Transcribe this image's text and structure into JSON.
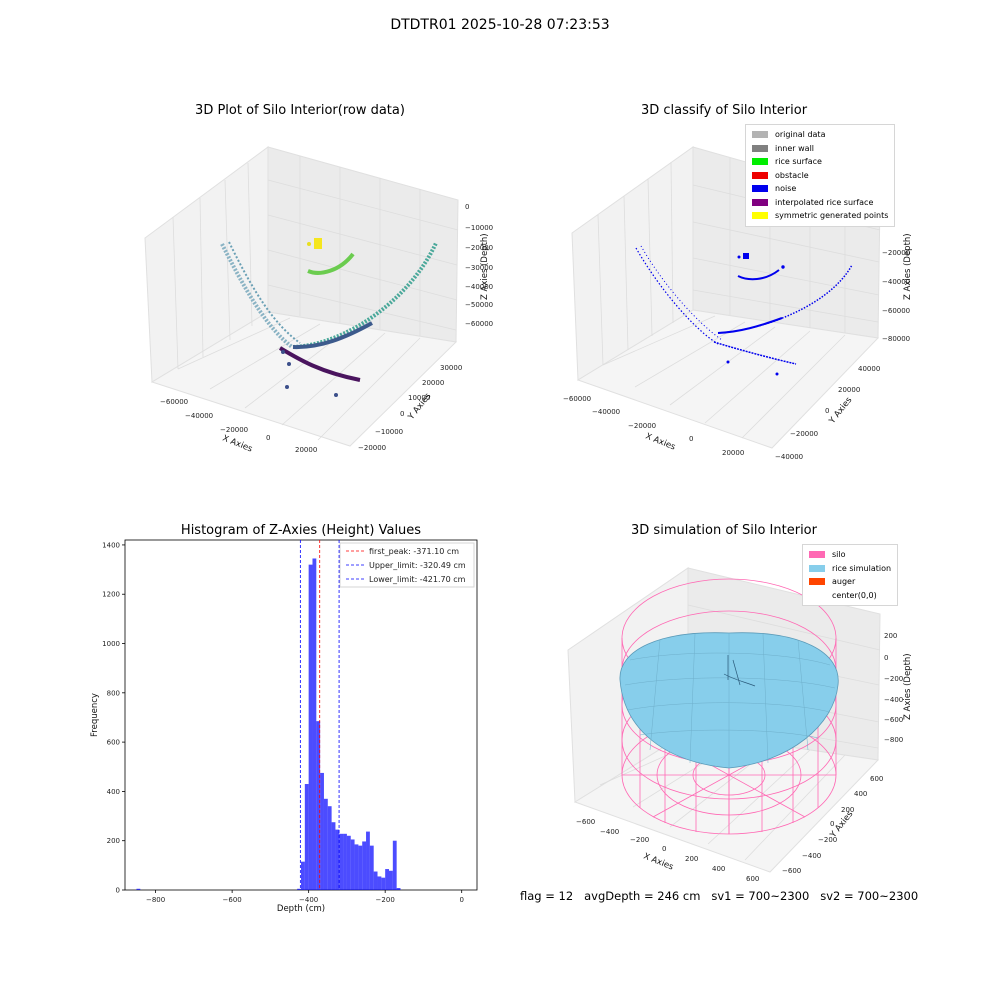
{
  "suptitle": "DTDTR01 2025-10-28 07:23:53",
  "footer": "flag = 12   avgDepth = 246 cm   sv1 = 700~2300   sv2 = 700~2300",
  "plots": {
    "p1": {
      "title": "3D Plot of Silo Interior(row data)",
      "xlabel": "X Axies",
      "ylabel": "Y Axies",
      "zlabel": "Z Axies (Depth)",
      "xticks": [
        "−60000",
        "−40000",
        "−20000",
        "0",
        "20000"
      ],
      "yticks": [
        "−20000",
        "−10000",
        "0",
        "10000",
        "20000",
        "30000"
      ],
      "zticks": [
        "0",
        "−10000",
        "−20000",
        "−30000",
        "−40000",
        "−50000",
        "−60000"
      ]
    },
    "p2": {
      "title": "3D classify of Silo Interior",
      "xlabel": "X Axies",
      "ylabel": "Y Axies",
      "zlabel": "Z Axies (Depth)",
      "xticks": [
        "−60000",
        "−40000",
        "−20000",
        "0",
        "20000"
      ],
      "yticks": [
        "−40000",
        "−20000",
        "0",
        "20000",
        "40000"
      ],
      "zticks": [
        "0",
        "−20000",
        "−40000",
        "−60000",
        "−80000"
      ],
      "legend": [
        {
          "label": "original data",
          "color": "#b3b3b3"
        },
        {
          "label": "inner wall",
          "color": "#808080"
        },
        {
          "label": "rice surface",
          "color": "#00ee00"
        },
        {
          "label": "obstacle",
          "color": "#ee0000"
        },
        {
          "label": "noise",
          "color": "#0000ee"
        },
        {
          "label": "interpolated rice surface",
          "color": "#800080"
        },
        {
          "label": "symmetric generated points",
          "color": "#ffff00"
        }
      ]
    },
    "p4": {
      "title": "3D simulation of Silo Interior",
      "xlabel": "X Axies",
      "ylabel": "Y Axies",
      "zlabel": "Z Axies (Depth)",
      "xticks": [
        "−600",
        "−400",
        "−200",
        "0",
        "200",
        "400",
        "600"
      ],
      "yticks": [
        "−600",
        "−400",
        "−200",
        "0",
        "200",
        "400",
        "600"
      ],
      "zticks": [
        "200",
        "0",
        "−200",
        "−400",
        "−600",
        "−800"
      ],
      "legend": [
        {
          "label": "silo",
          "color": "#ff69b4"
        },
        {
          "label": "rice simulation",
          "color": "#87ceeb"
        },
        {
          "label": "auger",
          "color": "#ff4500"
        },
        {
          "label": "center(0,0)",
          "color": "#ffffff"
        }
      ]
    }
  },
  "chart_data": [
    {
      "type": "scatter",
      "title": "3D Plot of Silo Interior(row data)",
      "xlabel": "X Axies",
      "ylabel": "Y Axies",
      "zlabel": "Z Axies (Depth)",
      "xlim": [
        -65000,
        30000
      ],
      "ylim": [
        -25000,
        35000
      ],
      "zlim": [
        -65000,
        2000
      ]
    },
    {
      "type": "scatter",
      "title": "3D classify of Silo Interior",
      "xlabel": "X Axies",
      "ylabel": "Y Axies",
      "zlabel": "Z Axies (Depth)",
      "xlim": [
        -65000,
        30000
      ],
      "ylim": [
        -45000,
        45000
      ],
      "zlim": [
        -85000,
        2000
      ]
    },
    {
      "type": "bar",
      "title": "Histogram of Z-Axies (Height) Values",
      "xlabel": "Depth (cm)",
      "ylabel": "Frequency",
      "xlim": [
        -880,
        40
      ],
      "ylim": [
        0,
        1420
      ],
      "xticks": [
        -800,
        -600,
        -400,
        -200,
        0
      ],
      "yticks": [
        0,
        200,
        400,
        600,
        800,
        1000,
        1200,
        1400
      ],
      "bin_width": 10,
      "bins": [
        {
          "x": -850,
          "y": 5
        },
        {
          "x": -430,
          "y": 5
        },
        {
          "x": -420,
          "y": 115
        },
        {
          "x": -410,
          "y": 430
        },
        {
          "x": -400,
          "y": 1320
        },
        {
          "x": -390,
          "y": 1345
        },
        {
          "x": -380,
          "y": 685
        },
        {
          "x": -370,
          "y": 475
        },
        {
          "x": -360,
          "y": 370
        },
        {
          "x": -350,
          "y": 340
        },
        {
          "x": -340,
          "y": 275
        },
        {
          "x": -330,
          "y": 245
        },
        {
          "x": -320,
          "y": 228
        },
        {
          "x": -310,
          "y": 228
        },
        {
          "x": -300,
          "y": 220
        },
        {
          "x": -290,
          "y": 205
        },
        {
          "x": -280,
          "y": 185
        },
        {
          "x": -270,
          "y": 180
        },
        {
          "x": -260,
          "y": 197
        },
        {
          "x": -250,
          "y": 237
        },
        {
          "x": -240,
          "y": 180
        },
        {
          "x": -230,
          "y": 75
        },
        {
          "x": -220,
          "y": 55
        },
        {
          "x": -210,
          "y": 50
        },
        {
          "x": -200,
          "y": 85
        },
        {
          "x": -190,
          "y": 78
        },
        {
          "x": -180,
          "y": 200
        },
        {
          "x": -170,
          "y": 8
        }
      ],
      "vlines": [
        {
          "label": "first_peak: -371.10 cm",
          "x": -371.1,
          "color": "#ff0000"
        },
        {
          "label": "Upper_limit: -320.49 cm",
          "x": -320.49,
          "color": "#0000ff"
        },
        {
          "label": "Lower_limit: -421.70 cm",
          "x": -421.7,
          "color": "#0000ff"
        }
      ]
    },
    {
      "type": "other",
      "title": "3D simulation of Silo Interior",
      "xlabel": "X Axies",
      "ylabel": "Y Axies",
      "zlabel": "Z Axies (Depth)",
      "xlim": [
        -700,
        700
      ],
      "ylim": [
        -700,
        700
      ],
      "zlim": [
        -900,
        300
      ]
    }
  ]
}
